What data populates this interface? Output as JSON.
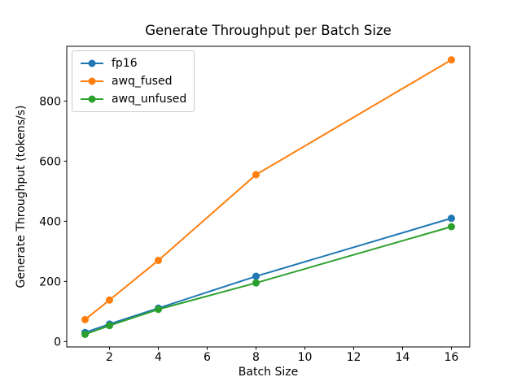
{
  "title": "Generate Throughput per Batch Size",
  "chart_data": {
    "type": "line",
    "title": "Generate Throughput per Batch Size",
    "xlabel": "Batch Size",
    "ylabel": "Generate Throughput (tokens/s)",
    "x": [
      1,
      2,
      4,
      8,
      16
    ],
    "series": [
      {
        "name": "fp16",
        "color": "#1f77b4",
        "values": [
          30,
          58,
          111,
          217,
          410
        ]
      },
      {
        "name": "awq_fused",
        "color": "#ff7f0e",
        "values": [
          73,
          138,
          270,
          555,
          937
        ]
      },
      {
        "name": "awq_unfused",
        "color": "#2ca02c",
        "values": [
          24,
          53,
          107,
          195,
          382
        ]
      }
    ],
    "xticks": [
      2,
      4,
      6,
      8,
      10,
      12,
      14,
      16
    ],
    "yticks": [
      0,
      200,
      400,
      600,
      800
    ],
    "xlim": [
      0.25,
      16.75
    ],
    "ylim": [
      -18,
      982
    ],
    "legend_position": "upper left",
    "grid": false,
    "marker": "o",
    "line_width": 2,
    "spine_color": "#000000",
    "background_color": "#ffffff"
  }
}
